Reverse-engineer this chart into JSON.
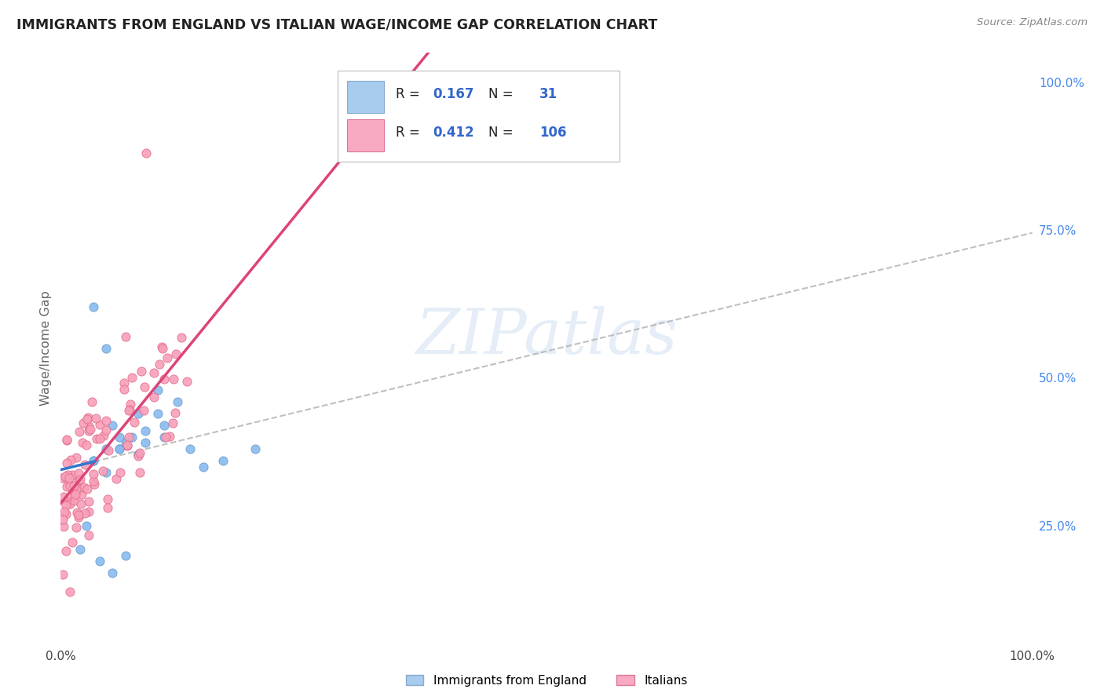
{
  "title": "IMMIGRANTS FROM ENGLAND VS ITALIAN WAGE/INCOME GAP CORRELATION CHART",
  "source": "Source: ZipAtlas.com",
  "ylabel": "Wage/Income Gap",
  "watermark": "ZIPatlas",
  "right_ytick_labels": [
    "25.0%",
    "50.0%",
    "75.0%",
    "100.0%"
  ],
  "right_ytick_values": [
    0.25,
    0.5,
    0.75,
    1.0
  ],
  "ylim": [
    0.05,
    1.05
  ],
  "xlim": [
    0.0,
    1.0
  ],
  "background_color": "#ffffff",
  "grid_color": "#d0d0d0",
  "england_color": "#88bbee",
  "england_edge": "#6699cc",
  "italy_color": "#f8a0b8",
  "italy_edge": "#e06888",
  "england_trend_color": "#3377cc",
  "italy_trend_color": "#dd4477",
  "dash_color": "#b0b0b0",
  "legend_box_color": "#dddddd",
  "R_color": "#3366cc",
  "N_color": "#3366cc"
}
